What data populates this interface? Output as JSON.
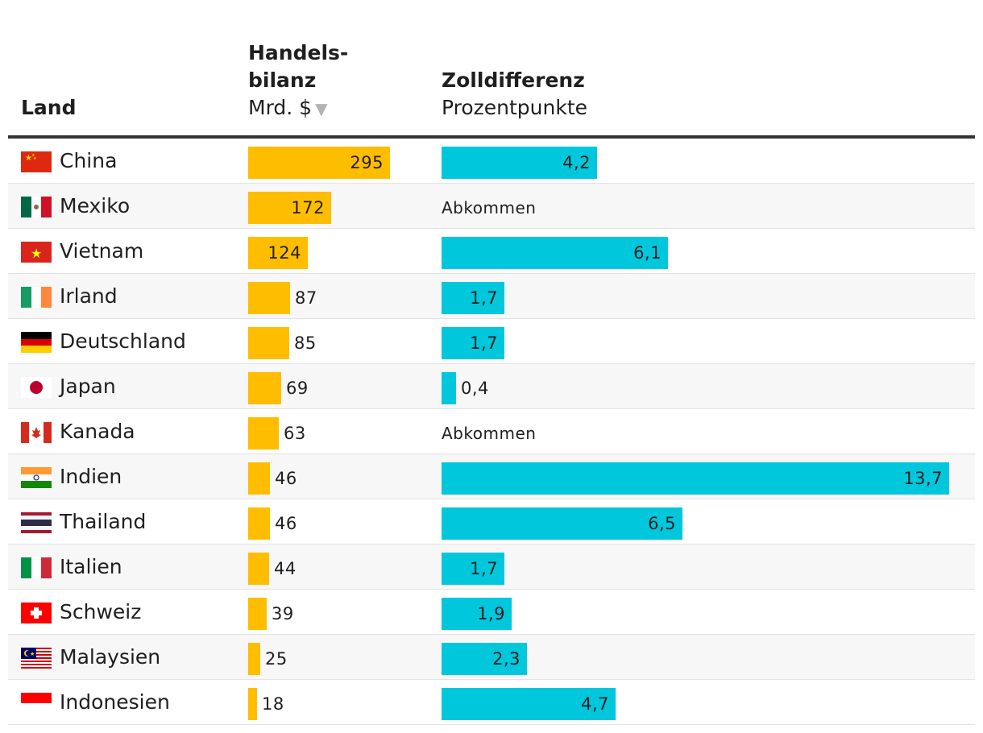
{
  "header": {
    "land": "Land",
    "balance_title_line1": "Handels-",
    "balance_title_line2": "bilanz",
    "balance_unit": "Mrd. $",
    "sort_glyph": "▼",
    "tariff_title": "Zolldifferenz",
    "tariff_unit": "Prozentpunkte"
  },
  "colors": {
    "balance_bar": "#ffbd00",
    "tariff_bar": "#00c7dc",
    "header_rule": "#333333"
  },
  "chart_data": {
    "type": "table",
    "columns": [
      "Land",
      "Handelsbilanz Mrd. $",
      "Zolldifferenz Prozentpunkte"
    ],
    "balance_max": 295,
    "tariff_max": 13.7,
    "rows": [
      {
        "country": "China",
        "flag": "china-flag-icon",
        "balance": 295,
        "balance_label": "295",
        "tariff": 4.2,
        "tariff_label": "4,2"
      },
      {
        "country": "Mexiko",
        "flag": "mexico-flag-icon",
        "balance": 172,
        "balance_label": "172",
        "tariff": null,
        "tariff_label": "Abkommen"
      },
      {
        "country": "Vietnam",
        "flag": "vietnam-flag-icon",
        "balance": 124,
        "balance_label": "124",
        "tariff": 6.1,
        "tariff_label": "6,1"
      },
      {
        "country": "Irland",
        "flag": "ireland-flag-icon",
        "balance": 87,
        "balance_label": "87",
        "tariff": 1.7,
        "tariff_label": "1,7"
      },
      {
        "country": "Deutschland",
        "flag": "germany-flag-icon",
        "balance": 85,
        "balance_label": "85",
        "tariff": 1.7,
        "tariff_label": "1,7"
      },
      {
        "country": "Japan",
        "flag": "japan-flag-icon",
        "balance": 69,
        "balance_label": "69",
        "tariff": 0.4,
        "tariff_label": "0,4"
      },
      {
        "country": "Kanada",
        "flag": "canada-flag-icon",
        "balance": 63,
        "balance_label": "63",
        "tariff": null,
        "tariff_label": "Abkommen"
      },
      {
        "country": "Indien",
        "flag": "india-flag-icon",
        "balance": 46,
        "balance_label": "46",
        "tariff": 13.7,
        "tariff_label": "13,7"
      },
      {
        "country": "Thailand",
        "flag": "thailand-flag-icon",
        "balance": 46,
        "balance_label": "46",
        "tariff": 6.5,
        "tariff_label": "6,5"
      },
      {
        "country": "Italien",
        "flag": "italy-flag-icon",
        "balance": 44,
        "balance_label": "44",
        "tariff": 1.7,
        "tariff_label": "1,7"
      },
      {
        "country": "Schweiz",
        "flag": "switzerland-flag-icon",
        "balance": 39,
        "balance_label": "39",
        "tariff": 1.9,
        "tariff_label": "1,9"
      },
      {
        "country": "Malaysien",
        "flag": "malaysia-flag-icon",
        "balance": 25,
        "balance_label": "25",
        "tariff": 2.3,
        "tariff_label": "2,3"
      },
      {
        "country": "Indonesien",
        "flag": "indonesia-flag-icon",
        "balance": 18,
        "balance_label": "18",
        "tariff": 4.7,
        "tariff_label": "4,7"
      }
    ]
  }
}
